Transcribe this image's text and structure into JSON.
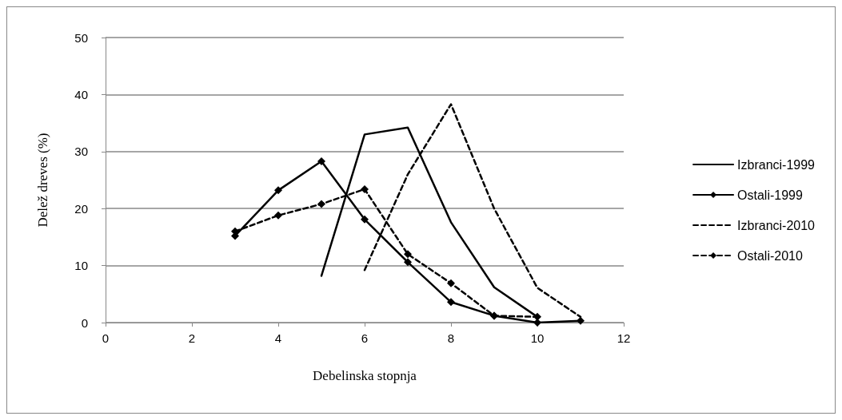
{
  "chart_data": {
    "type": "line",
    "xlabel": "Debelinska stopnja",
    "ylabel": "Delež dreves (%)",
    "xlim": [
      0,
      12
    ],
    "xticks": [
      0,
      2,
      4,
      6,
      8,
      10,
      12
    ],
    "ylim": [
      0,
      50
    ],
    "yticks": [
      0,
      10,
      20,
      30,
      40,
      50
    ],
    "grid": "y",
    "legend": "right",
    "series": [
      {
        "name": "Izbranci-1999",
        "color": "#000000",
        "marker": "none",
        "line_style": "solid",
        "x": [
          5,
          6,
          7,
          8,
          9,
          10
        ],
        "values": [
          8.2,
          33,
          34.2,
          17.6,
          6.2,
          1.0
        ]
      },
      {
        "name": "Ostali-1999",
        "color": "#000000",
        "marker": "diamond",
        "line_style": "solid",
        "x": [
          3,
          4,
          5,
          6,
          7,
          8,
          9,
          10,
          11
        ],
        "values": [
          15.2,
          23.2,
          28.3,
          18.1,
          10.6,
          3.6,
          1.2,
          0,
          0.3
        ]
      },
      {
        "name": "Izbranci-2010",
        "color": "#000000",
        "marker": "none",
        "line_style": "dashed",
        "x": [
          6,
          7,
          8,
          9,
          10,
          11
        ],
        "values": [
          9.2,
          26,
          38.3,
          20,
          6.1,
          1.0
        ]
      },
      {
        "name": "Ostali-2010",
        "color": "#000000",
        "marker": "diamond",
        "line_style": "dashed",
        "x": [
          3,
          4,
          5,
          6,
          7,
          8,
          9,
          10
        ],
        "values": [
          16,
          18.8,
          20.8,
          23.4,
          12,
          6.9,
          1.2,
          1.0
        ]
      }
    ]
  }
}
